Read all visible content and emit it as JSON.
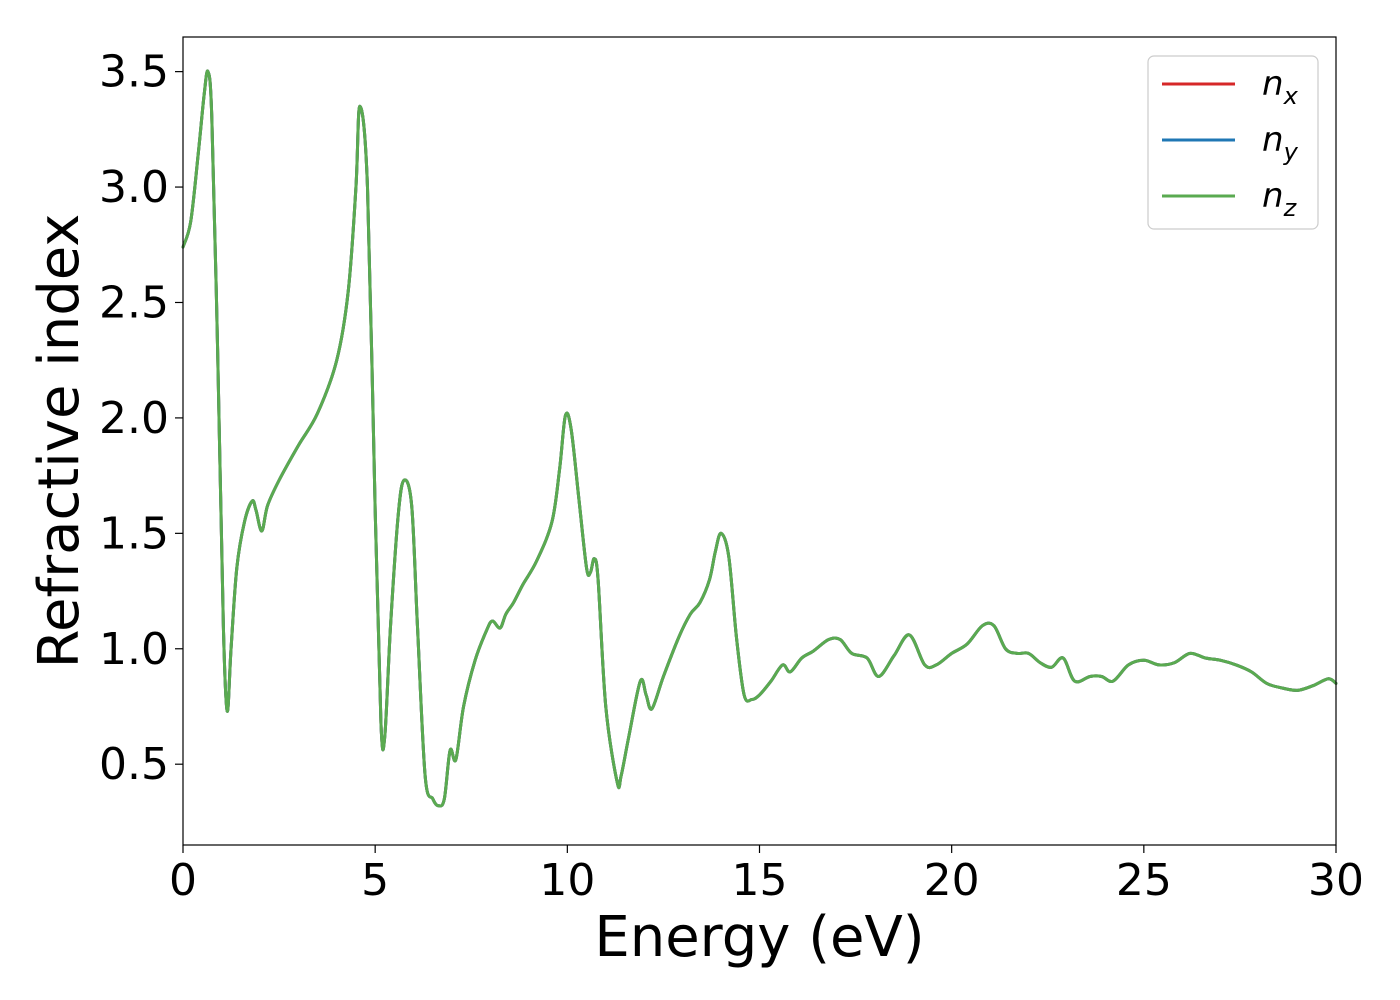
{
  "chart_data": {
    "type": "line",
    "xlabel": "Energy (eV)",
    "ylabel": "Refractive index",
    "xlim": [
      0,
      30
    ],
    "ylim": [
      0.15,
      3.65
    ],
    "xticks": [
      0,
      5,
      10,
      15,
      20,
      25,
      30
    ],
    "xtick_labels": [
      "0",
      "5",
      "10",
      "15",
      "20",
      "25",
      "30"
    ],
    "yticks": [
      0.5,
      1.0,
      1.5,
      2.0,
      2.5,
      3.0,
      3.5
    ],
    "ytick_labels": [
      "0.5",
      "1.0",
      "1.5",
      "2.0",
      "2.5",
      "3.0",
      "3.5"
    ],
    "grid": false,
    "legend_position": "top-right",
    "x": [
      0,
      0.2,
      0.4,
      0.55,
      0.65,
      0.75,
      0.9,
      1.05,
      1.15,
      1.25,
      1.4,
      1.6,
      1.8,
      1.9,
      2.05,
      2.2,
      2.5,
      3.0,
      3.5,
      4.0,
      4.3,
      4.5,
      4.6,
      4.8,
      5.0,
      5.15,
      5.25,
      5.4,
      5.6,
      5.75,
      5.95,
      6.1,
      6.3,
      6.5,
      6.65,
      6.8,
      6.95,
      7.1,
      7.3,
      7.6,
      7.9,
      8.05,
      8.25,
      8.4,
      8.6,
      8.85,
      9.2,
      9.6,
      9.8,
      9.95,
      10.1,
      10.3,
      10.5,
      10.6,
      10.7,
      10.8,
      11.0,
      11.3,
      11.4,
      11.6,
      11.9,
      12.05,
      12.2,
      12.5,
      12.9,
      13.2,
      13.45,
      13.7,
      13.85,
      14.0,
      14.2,
      14.4,
      14.6,
      14.8,
      15.0,
      15.3,
      15.6,
      15.8,
      16.1,
      16.4,
      16.8,
      17.1,
      17.4,
      17.8,
      18.1,
      18.5,
      18.9,
      19.3,
      19.6,
      20.0,
      20.4,
      20.8,
      21.1,
      21.4,
      21.7,
      22.0,
      22.3,
      22.6,
      22.9,
      23.2,
      23.6,
      23.9,
      24.2,
      24.6,
      25.0,
      25.4,
      25.8,
      26.2,
      26.6,
      27.0,
      27.4,
      27.8,
      28.2,
      28.6,
      29.0,
      29.4,
      29.8,
      30.0
    ],
    "series": [
      {
        "name": "n_x",
        "label_base": "n",
        "label_sub": "x",
        "color": "#d62728",
        "values": [
          2.74,
          2.85,
          3.15,
          3.4,
          3.5,
          3.3,
          2.3,
          1.1,
          0.73,
          1.0,
          1.35,
          1.55,
          1.64,
          1.6,
          1.51,
          1.62,
          1.73,
          1.88,
          2.02,
          2.25,
          2.55,
          3.0,
          3.35,
          3.0,
          1.6,
          0.68,
          0.62,
          1.1,
          1.58,
          1.73,
          1.62,
          1.1,
          0.45,
          0.35,
          0.32,
          0.35,
          0.56,
          0.52,
          0.75,
          0.95,
          1.08,
          1.12,
          1.09,
          1.15,
          1.2,
          1.28,
          1.38,
          1.55,
          1.78,
          2.01,
          1.95,
          1.65,
          1.35,
          1.33,
          1.39,
          1.3,
          0.75,
          0.42,
          0.45,
          0.62,
          0.86,
          0.8,
          0.74,
          0.88,
          1.05,
          1.15,
          1.2,
          1.3,
          1.42,
          1.5,
          1.4,
          1.05,
          0.8,
          0.78,
          0.8,
          0.86,
          0.93,
          0.9,
          0.96,
          0.99,
          1.04,
          1.04,
          0.98,
          0.96,
          0.88,
          0.97,
          1.06,
          0.93,
          0.93,
          0.98,
          1.02,
          1.1,
          1.1,
          1.0,
          0.98,
          0.98,
          0.94,
          0.92,
          0.96,
          0.86,
          0.88,
          0.88,
          0.86,
          0.93,
          0.95,
          0.93,
          0.94,
          0.98,
          0.96,
          0.95,
          0.93,
          0.9,
          0.85,
          0.83,
          0.82,
          0.84,
          0.87,
          0.85
        ]
      },
      {
        "name": "n_y",
        "label_base": "n",
        "label_sub": "y",
        "color": "#1f77b4",
        "values": [
          2.74,
          2.85,
          3.15,
          3.4,
          3.5,
          3.3,
          2.3,
          1.1,
          0.73,
          1.0,
          1.35,
          1.55,
          1.64,
          1.6,
          1.51,
          1.62,
          1.73,
          1.88,
          2.02,
          2.25,
          2.55,
          3.0,
          3.35,
          3.0,
          1.6,
          0.68,
          0.62,
          1.1,
          1.58,
          1.73,
          1.62,
          1.1,
          0.45,
          0.35,
          0.32,
          0.35,
          0.56,
          0.52,
          0.75,
          0.95,
          1.08,
          1.12,
          1.09,
          1.15,
          1.2,
          1.28,
          1.38,
          1.55,
          1.78,
          2.01,
          1.95,
          1.65,
          1.35,
          1.33,
          1.39,
          1.3,
          0.75,
          0.42,
          0.45,
          0.62,
          0.86,
          0.8,
          0.74,
          0.88,
          1.05,
          1.15,
          1.2,
          1.3,
          1.42,
          1.5,
          1.4,
          1.05,
          0.8,
          0.78,
          0.8,
          0.86,
          0.93,
          0.9,
          0.96,
          0.99,
          1.04,
          1.04,
          0.98,
          0.96,
          0.88,
          0.97,
          1.06,
          0.93,
          0.93,
          0.98,
          1.02,
          1.1,
          1.1,
          1.0,
          0.98,
          0.98,
          0.94,
          0.92,
          0.96,
          0.86,
          0.88,
          0.88,
          0.86,
          0.93,
          0.95,
          0.93,
          0.94,
          0.98,
          0.96,
          0.95,
          0.93,
          0.9,
          0.85,
          0.83,
          0.82,
          0.84,
          0.87,
          0.85
        ]
      },
      {
        "name": "n_z",
        "label_base": "n",
        "label_sub": "z",
        "color": "#5aaa50",
        "values": [
          2.74,
          2.85,
          3.15,
          3.4,
          3.5,
          3.3,
          2.3,
          1.1,
          0.73,
          1.0,
          1.35,
          1.55,
          1.64,
          1.6,
          1.51,
          1.62,
          1.73,
          1.88,
          2.02,
          2.25,
          2.55,
          3.0,
          3.35,
          3.0,
          1.6,
          0.68,
          0.62,
          1.1,
          1.58,
          1.73,
          1.62,
          1.1,
          0.45,
          0.35,
          0.32,
          0.35,
          0.56,
          0.52,
          0.75,
          0.95,
          1.08,
          1.12,
          1.09,
          1.15,
          1.2,
          1.28,
          1.38,
          1.55,
          1.78,
          2.01,
          1.95,
          1.65,
          1.35,
          1.33,
          1.39,
          1.3,
          0.75,
          0.42,
          0.45,
          0.62,
          0.86,
          0.8,
          0.74,
          0.88,
          1.05,
          1.15,
          1.2,
          1.3,
          1.42,
          1.5,
          1.4,
          1.05,
          0.8,
          0.78,
          0.8,
          0.86,
          0.93,
          0.9,
          0.96,
          0.99,
          1.04,
          1.04,
          0.98,
          0.96,
          0.88,
          0.97,
          1.06,
          0.93,
          0.93,
          0.98,
          1.02,
          1.1,
          1.1,
          1.0,
          0.98,
          0.98,
          0.94,
          0.92,
          0.96,
          0.86,
          0.88,
          0.88,
          0.86,
          0.93,
          0.95,
          0.93,
          0.94,
          0.98,
          0.96,
          0.95,
          0.93,
          0.9,
          0.85,
          0.83,
          0.82,
          0.84,
          0.87,
          0.85
        ]
      }
    ]
  }
}
